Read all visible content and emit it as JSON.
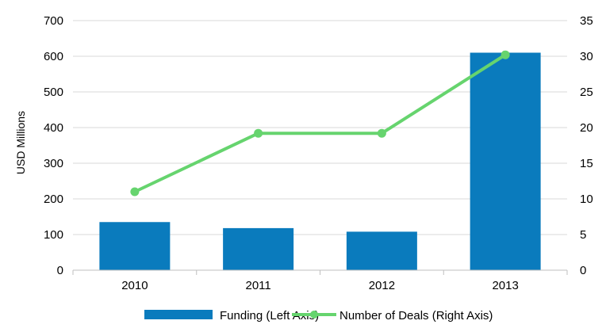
{
  "chart_data": {
    "type": "bar",
    "categories": [
      "2010",
      "2011",
      "2012",
      "2013"
    ],
    "series": [
      {
        "name": "Funding (Left Axis)",
        "type": "bar",
        "axis": "left",
        "color": "#0a7bbd",
        "values": [
          135,
          118,
          108,
          610
        ]
      },
      {
        "name": "Number of Deals (Right Axis)",
        "type": "line",
        "axis": "right",
        "color": "#66d46e",
        "values": [
          11,
          19.2,
          19.2,
          30.2
        ]
      }
    ],
    "ylabel": "USD Millions",
    "ylim": [
      0,
      700
    ],
    "y_ticks": [
      "0",
      "100",
      "200",
      "300",
      "400",
      "500",
      "600",
      "700"
    ],
    "y2lim": [
      0,
      35
    ],
    "y2_ticks": [
      "0",
      "5",
      "10",
      "15",
      "20",
      "25",
      "30",
      "35"
    ],
    "grid": "horizontal",
    "legend_position": "bottom"
  }
}
